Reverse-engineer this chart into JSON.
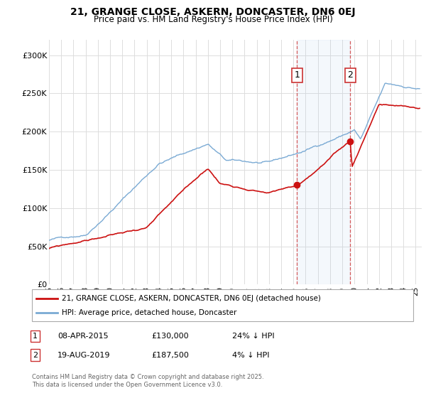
{
  "title": "21, GRANGE CLOSE, ASKERN, DONCASTER, DN6 0EJ",
  "subtitle": "Price paid vs. HM Land Registry's House Price Index (HPI)",
  "ylim": [
    0,
    320000
  ],
  "yticks": [
    0,
    50000,
    100000,
    150000,
    200000,
    250000,
    300000
  ],
  "ytick_labels": [
    "£0",
    "£50K",
    "£100K",
    "£150K",
    "£200K",
    "£250K",
    "£300K"
  ],
  "background_color": "#ffffff",
  "plot_bg_color": "#ffffff",
  "grid_color": "#dddddd",
  "hpi_color": "#7aaad4",
  "price_color": "#cc1111",
  "m1_year": 2015.27,
  "m2_year": 2019.63,
  "m1_price": 130000,
  "m2_price": 187500,
  "legend_line1": "21, GRANGE CLOSE, ASKERN, DONCASTER, DN6 0EJ (detached house)",
  "legend_line2": "HPI: Average price, detached house, Doncaster",
  "note1_date": "08-APR-2015",
  "note1_price": "£130,000",
  "note1_hpi": "24% ↓ HPI",
  "note2_date": "19-AUG-2019",
  "note2_price": "£187,500",
  "note2_hpi": "4% ↓ HPI",
  "copyright_text": "Contains HM Land Registry data © Crown copyright and database right 2025.\nThis data is licensed under the Open Government Licence v3.0."
}
